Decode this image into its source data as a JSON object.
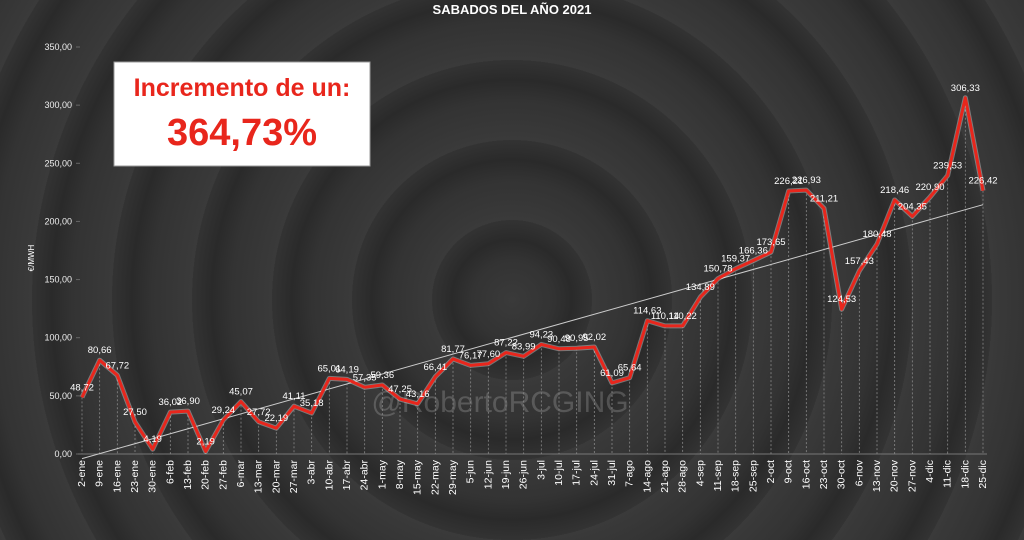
{
  "chart_data": {
    "type": "line",
    "title": "SABADOS DEL AÑO 2021",
    "ylabel": "€/MWH",
    "annotations": [
      "Incremento de un:",
      "364,73%"
    ],
    "watermark": "@RobertoRCGING",
    "color": "#e8261c",
    "grid": false,
    "trendline": true,
    "categories": [
      "2-ene",
      "9-ene",
      "16-ene",
      "23-ene",
      "30-ene",
      "6-feb",
      "13-feb",
      "20-feb",
      "27-feb",
      "6-mar",
      "13-mar",
      "20-mar",
      "27-mar",
      "3-abr",
      "10-abr",
      "17-abr",
      "24-abr",
      "1-may",
      "8-may",
      "15-may",
      "22-may",
      "29-may",
      "5-jun",
      "12-jun",
      "19-jun",
      "26-jun",
      "3-jul",
      "10-jul",
      "17-jul",
      "24-jul",
      "31-jul",
      "7-ago",
      "14-ago",
      "21-ago",
      "28-ago",
      "4-sep",
      "11-sep",
      "18-sep",
      "25-sep",
      "2-oct",
      "9-oct",
      "16-oct",
      "23-oct",
      "30-oct",
      "6-nov",
      "13-nov",
      "20-nov",
      "27-nov",
      "4-dic",
      "11-dic",
      "18-dic",
      "25-dic"
    ],
    "values": [
      48.72,
      80.66,
      67.72,
      27.5,
      4.19,
      36.02,
      36.9,
      2.19,
      29.24,
      45.07,
      27.72,
      22.19,
      41.11,
      35.18,
      65.01,
      64.19,
      57.35,
      59.36,
      47.25,
      43.16,
      66.41,
      81.77,
      76.17,
      77.6,
      87.22,
      83.99,
      94.23,
      90.48,
      90.95,
      92.02,
      61.09,
      65.64,
      114.63,
      110.14,
      110.22,
      134.89,
      150.78,
      159.37,
      166.36,
      173.65,
      226.21,
      226.93,
      211.21,
      124.53,
      157.43,
      180.48,
      218.46,
      204.35,
      220.9,
      239.53,
      306.33,
      226.42
    ],
    "value_labels": [
      "48,72",
      "80,66",
      "67,72",
      "27,50",
      "4,19",
      "36,02",
      "36,90",
      "2,19",
      "29,24",
      "45,07",
      "27,72",
      "22,19",
      "41,11",
      "35,18",
      "65,01",
      "64,19",
      "57,35",
      "59,36",
      "47,25",
      "43,16",
      "66,41",
      "81,77",
      "76,17",
      "77,60",
      "87,22",
      "83,99",
      "94,23",
      "90,48",
      "90,95",
      "92,02",
      "61,09",
      "65,64",
      "114,63",
      "110,14",
      "110,22",
      "134,89",
      "150,78",
      "159,37",
      "166,36",
      "173,65",
      "226,21",
      "226,93",
      "211,21",
      "124,53",
      "157,43",
      "180,48",
      "218,46",
      "204,35",
      "220,90",
      "239,53",
      "306,33",
      "226,42"
    ],
    "ylim": [
      0,
      350
    ],
    "yticks": [
      {
        "value": 0,
        "label": "0,00"
      },
      {
        "value": 50,
        "label": "50,00"
      },
      {
        "value": 100,
        "label": "100,00"
      },
      {
        "value": 150,
        "label": "150,00"
      },
      {
        "value": 200,
        "label": "200,00"
      },
      {
        "value": 250,
        "label": "250,00"
      },
      {
        "value": 300,
        "label": "300,00"
      },
      {
        "value": 350,
        "label": "350,00"
      }
    ]
  }
}
